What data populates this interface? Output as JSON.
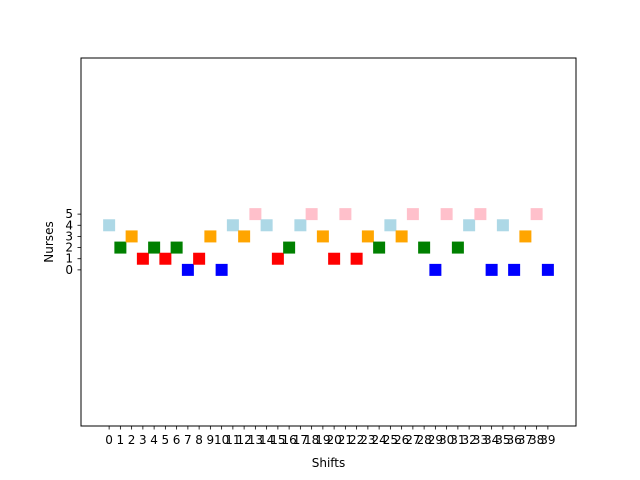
{
  "chart_data": {
    "type": "scatter",
    "title": "",
    "xlabel": "Shifts",
    "ylabel": "Nurses",
    "x": [
      0,
      1,
      2,
      3,
      4,
      5,
      6,
      7,
      8,
      9,
      10,
      11,
      12,
      13,
      14,
      15,
      16,
      17,
      18,
      19,
      20,
      21,
      22,
      23,
      24,
      25,
      26,
      27,
      28,
      29,
      30,
      31,
      32,
      33,
      34,
      35,
      36,
      37,
      38,
      39
    ],
    "y": [
      4,
      2,
      3,
      1,
      2,
      1,
      2,
      0,
      1,
      3,
      0,
      4,
      3,
      5,
      4,
      1,
      2,
      4,
      5,
      3,
      1,
      5,
      1,
      3,
      2,
      4,
      3,
      5,
      2,
      0,
      5,
      2,
      4,
      5,
      0,
      4,
      0,
      3,
      5,
      0
    ],
    "x_ticks": [
      "0",
      "1",
      "2",
      "3",
      "4",
      "5",
      "6",
      "7",
      "8",
      "9",
      "10",
      "11",
      "12",
      "13",
      "14",
      "15",
      "16",
      "17",
      "18",
      "19",
      "20",
      "21",
      "22",
      "23",
      "24",
      "25",
      "26",
      "27",
      "28",
      "29",
      "30",
      "31",
      "32",
      "33",
      "34",
      "35",
      "36",
      "37",
      "38",
      "39"
    ],
    "y_ticks": [
      "0",
      "1",
      "2",
      "3",
      "4",
      "5"
    ],
    "xlim": [
      -2.5,
      41.5
    ],
    "ylim": [
      -14,
      19
    ],
    "marker": "square",
    "grid": false,
    "colors_by_value": {
      "0": "#0000ff",
      "1": "#ff0000",
      "2": "#008000",
      "3": "#ffa500",
      "4": "#add8e6",
      "5": "#ffc0cb"
    }
  }
}
